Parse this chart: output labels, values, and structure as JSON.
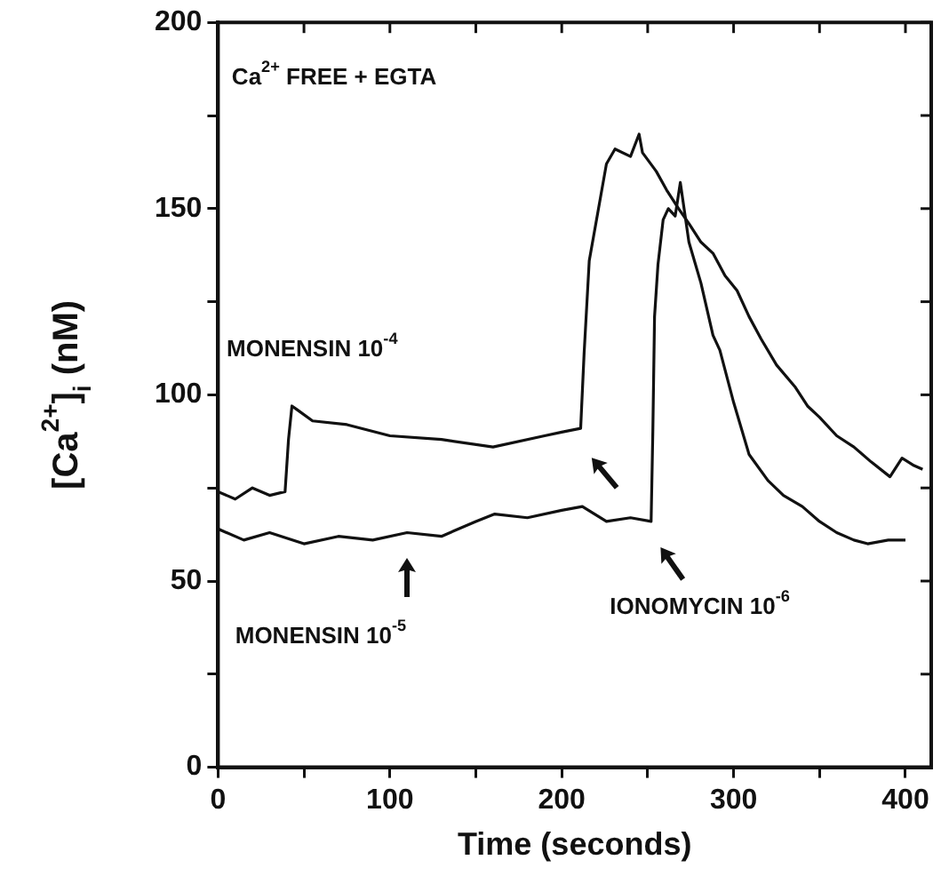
{
  "chart_data": {
    "type": "line",
    "xlabel": "Time (seconds)",
    "ylabel": "[Ca$^{2+}$]$_{i}$ (nM)",
    "xlim": [
      0,
      415
    ],
    "ylim": [
      0,
      200
    ],
    "xticks": [
      0,
      {
        "value": 50,
        "label": null
      },
      100,
      {
        "value": 150,
        "label": null
      },
      200,
      {
        "value": 250,
        "label": null
      },
      300,
      {
        "value": 350,
        "label": null
      },
      400
    ],
    "yticks": [
      0,
      {
        "value": 25,
        "label": null
      },
      50,
      {
        "value": 75,
        "label": null
      },
      100,
      {
        "value": 125,
        "label": null
      },
      150,
      {
        "value": 175,
        "label": null
      },
      200
    ],
    "grid": false,
    "legend": false,
    "marker": "none",
    "line_style": "solid",
    "annotations": [
      "Ca$^{2+}$ FREE + EGTA",
      "MONENSIN 10$^{-4}$",
      "MONENSIN 10$^{-5}$",
      "IONOMYCIN 10$^{-6}$"
    ],
    "series": [
      {
        "color": "#111111",
        "x": [
          0,
          10,
          20,
          30,
          39,
          41,
          43,
          46,
          55,
          75,
          100,
          130,
          160,
          190,
          200,
          211,
          213,
          216,
          221,
          226,
          231,
          240,
          245,
          247,
          255,
          261,
          268,
          274,
          281,
          288,
          295,
          302,
          309,
          316,
          325,
          336,
          343,
          350,
          360,
          370,
          380,
          391,
          398,
          405,
          410
        ],
        "values": [
          74,
          72,
          75,
          73,
          74,
          88,
          97,
          96,
          93,
          92,
          89,
          88,
          86,
          89,
          90,
          91,
          111,
          136,
          149,
          162,
          166,
          164,
          170,
          165,
          160,
          155,
          150,
          146,
          141,
          138,
          132,
          128,
          121,
          115,
          108,
          102,
          97,
          94,
          89,
          86,
          82,
          78,
          83,
          81,
          80
        ]
      },
      {
        "color": "#111111",
        "x": [
          0,
          15,
          30,
          50,
          70,
          90,
          110,
          130,
          150,
          161,
          180,
          200,
          212,
          226,
          240,
          252,
          253,
          254,
          256,
          259,
          262,
          266,
          269,
          274,
          281,
          288,
          292,
          300,
          309,
          320,
          329,
          340,
          350,
          360,
          370,
          378,
          390,
          400
        ],
        "values": [
          64,
          61,
          63,
          60,
          62,
          61,
          63,
          62,
          66,
          68,
          67,
          69,
          70,
          66,
          67,
          66,
          90,
          121,
          135,
          147,
          150,
          148,
          157,
          141,
          130,
          116,
          112,
          98,
          84,
          77,
          73,
          70,
          66,
          63,
          61,
          60,
          61,
          61
        ]
      }
    ]
  }
}
